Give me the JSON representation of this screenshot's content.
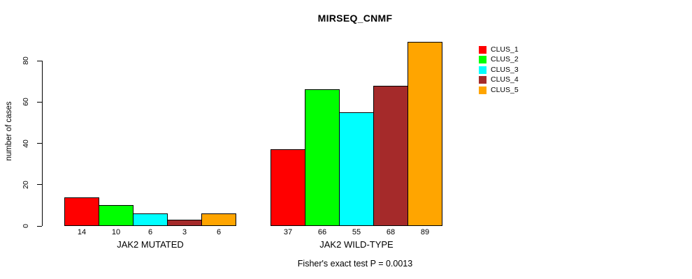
{
  "chart_data": {
    "type": "bar",
    "title": "MIRSEQ_CNMF",
    "ylabel": "number of cases",
    "xlabel": "",
    "annotation": "Fisher's exact test P = 0.0013",
    "categories": [
      "JAK2 MUTATED",
      "JAK2 WILD-TYPE"
    ],
    "series": [
      {
        "name": "CLUS_1",
        "color": "#FF0000",
        "values": [
          14,
          37
        ]
      },
      {
        "name": "CLUS_2",
        "color": "#00FF00",
        "values": [
          10,
          66
        ]
      },
      {
        "name": "CLUS_3",
        "color": "#00FFFF",
        "values": [
          6,
          55
        ]
      },
      {
        "name": "CLUS_4",
        "color": "#A52A2A",
        "values": [
          3,
          68
        ]
      },
      {
        "name": "CLUS_5",
        "color": "#FFA500",
        "values": [
          6,
          89
        ]
      }
    ],
    "yticks": [
      0,
      20,
      40,
      60,
      80
    ],
    "ylim": [
      0,
      89
    ],
    "bar_value_labels_shown": true,
    "legend_position": "right",
    "grid": false,
    "background_color": "#FFFFFF",
    "text_color": "#000000",
    "bar_border_color": "#000000"
  }
}
